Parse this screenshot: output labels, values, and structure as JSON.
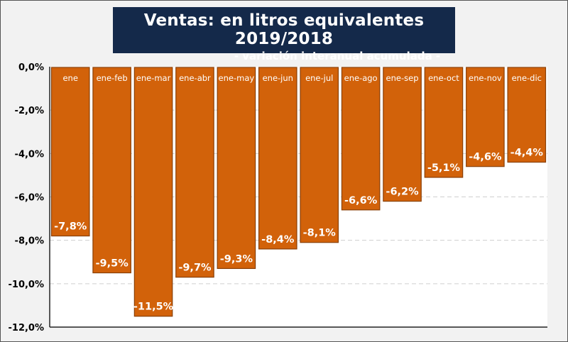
{
  "chart_data": {
    "type": "bar",
    "title": "Ventas: en litros equivalentes 2019/2018",
    "subtitle": "- variación interanual acumulada -",
    "categories": [
      "ene",
      "ene-feb",
      "ene-mar",
      "ene-abr",
      "ene-may",
      "ene-jun",
      "ene-jul",
      "ene-ago",
      "ene-sep",
      "ene-oct",
      "ene-nov",
      "ene-dic"
    ],
    "values": [
      -7.8,
      -9.5,
      -11.5,
      -9.7,
      -9.3,
      -8.4,
      -8.1,
      -6.6,
      -6.2,
      -5.1,
      -4.6,
      -4.4
    ],
    "data_labels": [
      "-7,8%",
      "-9,5%",
      "-11,5%",
      "-9,7%",
      "-9,3%",
      "-8,4%",
      "-8,1%",
      "-6,6%",
      "-6,2%",
      "-5,1%",
      "-4,6%",
      "-4,4%"
    ],
    "ylim": [
      -12,
      0
    ],
    "yticks": [
      0,
      -2,
      -4,
      -6,
      -8,
      -10,
      -12
    ],
    "ytick_labels": [
      "0,0%",
      "-2,0%",
      "-4,0%",
      "-6,0%",
      "-8,0%",
      "-10,0%",
      "-12,0%"
    ],
    "grid": true,
    "legend": "none",
    "colors": {
      "bar": "#d2620a",
      "bar_border": "#8a3f06",
      "title_bg": "#14294a"
    }
  }
}
